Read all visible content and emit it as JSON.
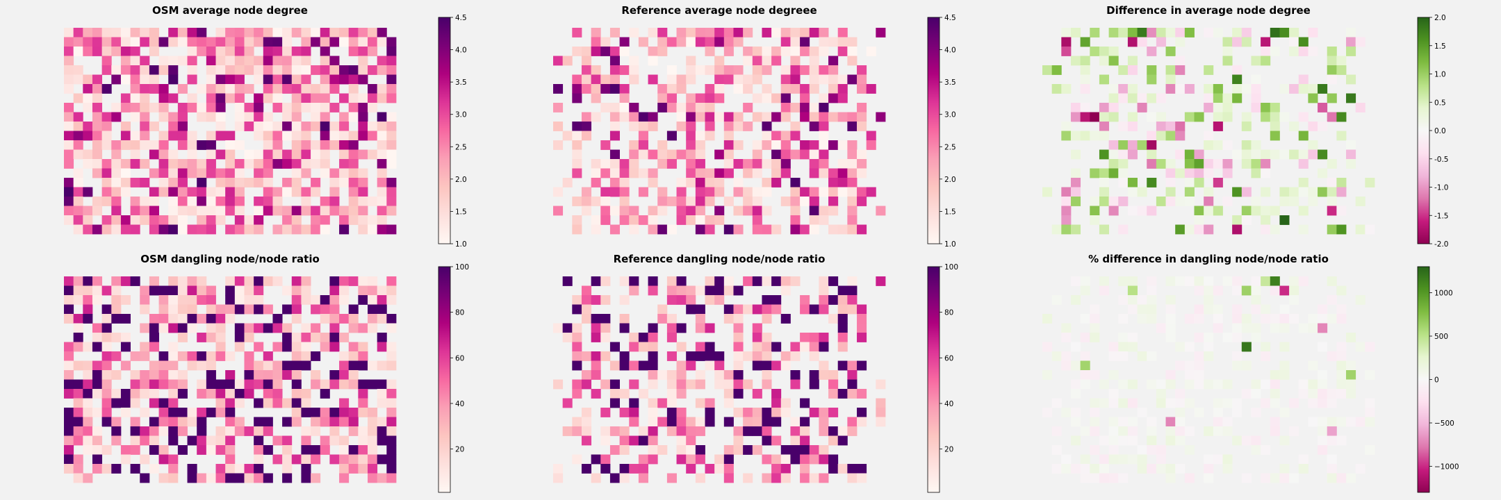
{
  "figure": {
    "background": "#f2f2f2"
  },
  "chart_data": [
    {
      "type": "heatmap",
      "title": "OSM average node degree",
      "colormap": "RdPu",
      "vmin": 1.0,
      "vmax": 4.5,
      "colorbar_ticks": [
        "1.0",
        "1.5",
        "2.0",
        "2.5",
        "3.0",
        "3.5",
        "4.0",
        "4.5"
      ],
      "grid": {
        "rows": 22,
        "cols": 35,
        "seed": 11,
        "fill_fraction": 0.78,
        "dist": "mid",
        "edge_ragged": false
      }
    },
    {
      "type": "heatmap",
      "title": "Reference average node degreee",
      "colormap": "RdPu",
      "vmin": 1.0,
      "vmax": 4.5,
      "colorbar_ticks": [
        "1.0",
        "1.5",
        "2.0",
        "2.5",
        "3.0",
        "3.5",
        "4.0",
        "4.5"
      ],
      "grid": {
        "rows": 22,
        "cols": 35,
        "seed": 23,
        "fill_fraction": 0.62,
        "dist": "mid",
        "edge_ragged": true
      }
    },
    {
      "type": "heatmap",
      "title": "Difference in average node degree",
      "colormap": "PiYG",
      "vmin": -2.0,
      "vmax": 2.0,
      "colorbar_ticks": [
        "-2.0",
        "-1.5",
        "-1.0",
        "-0.5",
        "0.0",
        "0.5",
        "1.0",
        "1.5",
        "2.0"
      ],
      "grid": {
        "rows": 22,
        "cols": 35,
        "seed": 37,
        "fill_fraction": 0.45,
        "dist": "diff",
        "edge_ragged": true
      }
    },
    {
      "type": "heatmap",
      "title": "OSM dangling node/node ratio",
      "colormap": "RdPu",
      "vmin": 1,
      "vmax": 100,
      "colorbar_ticks": [
        "20",
        "40",
        "60",
        "80",
        "100"
      ],
      "grid": {
        "rows": 22,
        "cols": 35,
        "seed": 41,
        "fill_fraction": 0.72,
        "dist": "ratio",
        "edge_ragged": false
      }
    },
    {
      "type": "heatmap",
      "title": "Reference dangling node/node ratio",
      "colormap": "RdPu",
      "vmin": 1,
      "vmax": 100,
      "colorbar_ticks": [
        "20",
        "40",
        "60",
        "80",
        "100"
      ],
      "grid": {
        "rows": 22,
        "cols": 35,
        "seed": 53,
        "fill_fraction": 0.5,
        "dist": "ratio",
        "edge_ragged": true
      }
    },
    {
      "type": "heatmap",
      "title": "% difference in dangling node/node ratio",
      "colormap": "PiYG",
      "vmin": -1300,
      "vmax": 1300,
      "colorbar_ticks": [
        "−1000",
        "−500",
        "0",
        "500",
        "1000"
      ],
      "grid": {
        "rows": 22,
        "cols": 35,
        "seed": 67,
        "fill_fraction": 0.45,
        "dist": "pctdiff",
        "edge_ragged": true
      }
    }
  ]
}
